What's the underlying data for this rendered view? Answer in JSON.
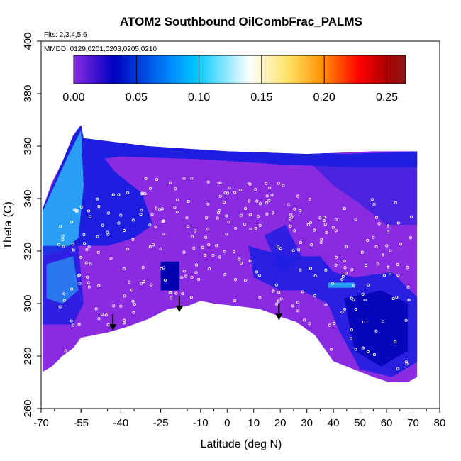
{
  "chart_data": {
    "type": "heatmap",
    "title": "ATOM2 Southbound OilCombFrac_PALMS",
    "annotations": [
      "Flts: 2,3,4,5,6",
      "MMDD: 0129,0201,0203,0205,0210"
    ],
    "xlabel": "Latitude (deg N)",
    "ylabel": "Theta (C)",
    "xlim": [
      -70,
      80
    ],
    "ylim": [
      260,
      400
    ],
    "x_ticks": [
      -70,
      -55,
      -40,
      -25,
      -10,
      0,
      10,
      20,
      30,
      40,
      50,
      60,
      70,
      80
    ],
    "y_ticks": [
      260,
      280,
      300,
      320,
      340,
      360,
      380,
      400
    ],
    "colorbar": {
      "range": [
        0,
        0.265
      ],
      "ticks": [
        0.0,
        0.05,
        0.1,
        0.15,
        0.2,
        0.25
      ],
      "tick_labels": [
        "0.00",
        "0.05",
        "0.10",
        "0.15",
        "0.20",
        "0.25"
      ],
      "colors": [
        "#8a2be2",
        "#0000c0",
        "#0090ff",
        "#00c8ff",
        "#ffffff",
        "#ffe060",
        "#ff9000",
        "#ff0000",
        "#b00000",
        "#8b1a1a"
      ]
    },
    "tropopause_arrows": [
      {
        "lat": -43,
        "theta": 290
      },
      {
        "lat": -18,
        "theta": 297
      },
      {
        "lat": 19.5,
        "theta": 294
      }
    ],
    "grid": false,
    "colors": {
      "background_fill": "#8a2be2",
      "medium_blue": "#1e1ee0",
      "dark_blue": "#0000b0",
      "sky_blue": "#2a9df4",
      "points": "#ffffff"
    }
  }
}
